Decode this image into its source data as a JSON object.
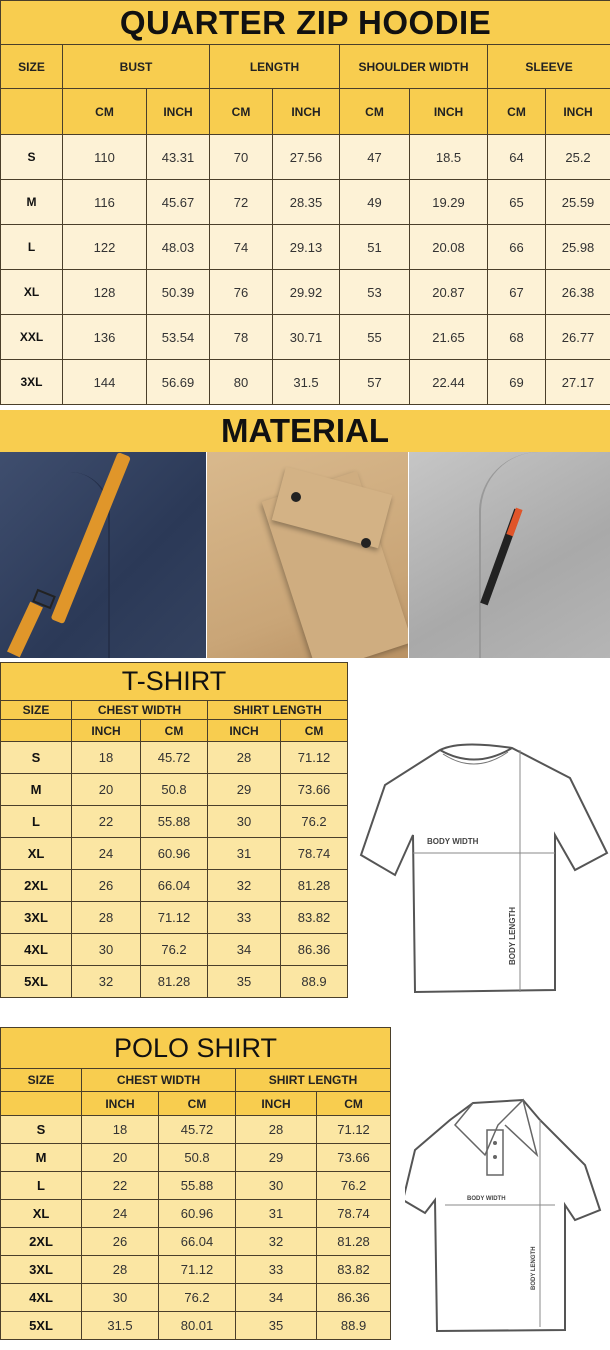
{
  "hoodie": {
    "title": "QUARTER ZIP HOODIE",
    "headers": [
      "SIZE",
      "BUST",
      "LENGTH",
      "SHOULDER WIDTH",
      "SLEEVE"
    ],
    "units": [
      "CM",
      "INCH",
      "CM",
      "INCH",
      "CM",
      "INCH",
      "CM",
      "INCH"
    ],
    "rows": [
      [
        "S",
        "110",
        "43.31",
        "70",
        "27.56",
        "47",
        "18.5",
        "64",
        "25.2"
      ],
      [
        "M",
        "116",
        "45.67",
        "72",
        "28.35",
        "49",
        "19.29",
        "65",
        "25.59"
      ],
      [
        "L",
        "122",
        "48.03",
        "74",
        "29.13",
        "51",
        "20.08",
        "66",
        "25.98"
      ],
      [
        "XL",
        "128",
        "50.39",
        "76",
        "29.92",
        "53",
        "20.87",
        "67",
        "26.38"
      ],
      [
        "XXL",
        "136",
        "53.54",
        "78",
        "30.71",
        "55",
        "21.65",
        "68",
        "26.77"
      ],
      [
        "3XL",
        "144",
        "56.69",
        "80",
        "31.5",
        "57",
        "22.44",
        "69",
        "27.17"
      ]
    ]
  },
  "material": {
    "title": "MATERIAL",
    "photos": [
      "navy-fabric-with-orange-strap",
      "tan-fabric-with-flap-pocket",
      "grey-fabric-with-zipper"
    ]
  },
  "tshirt": {
    "title": "T-SHIRT",
    "headers": [
      "SIZE",
      "CHEST WIDTH",
      "SHIRT LENGTH"
    ],
    "units": [
      "INCH",
      "CM",
      "INCH",
      "CM"
    ],
    "rows": [
      [
        "S",
        "18",
        "45.72",
        "28",
        "71.12"
      ],
      [
        "M",
        "20",
        "50.8",
        "29",
        "73.66"
      ],
      [
        "L",
        "22",
        "55.88",
        "30",
        "76.2"
      ],
      [
        "XL",
        "24",
        "60.96",
        "31",
        "78.74"
      ],
      [
        "2XL",
        "26",
        "66.04",
        "32",
        "81.28"
      ],
      [
        "3XL",
        "28",
        "71.12",
        "33",
        "83.82"
      ],
      [
        "4XL",
        "30",
        "76.2",
        "34",
        "86.36"
      ],
      [
        "5XL",
        "32",
        "81.28",
        "35",
        "88.9"
      ]
    ],
    "diagram": {
      "width_label": "BODY WIDTH",
      "length_label": "BODY LENGTH"
    }
  },
  "polo": {
    "title": "POLO SHIRT",
    "headers": [
      "SIZE",
      "CHEST WIDTH",
      "SHIRT LENGTH"
    ],
    "units": [
      "INCH",
      "CM",
      "INCH",
      "CM"
    ],
    "rows": [
      [
        "S",
        "18",
        "45.72",
        "28",
        "71.12"
      ],
      [
        "M",
        "20",
        "50.8",
        "29",
        "73.66"
      ],
      [
        "L",
        "22",
        "55.88",
        "30",
        "76.2"
      ],
      [
        "XL",
        "24",
        "60.96",
        "31",
        "78.74"
      ],
      [
        "2XL",
        "26",
        "66.04",
        "32",
        "81.28"
      ],
      [
        "3XL",
        "28",
        "71.12",
        "33",
        "83.82"
      ],
      [
        "4XL",
        "30",
        "76.2",
        "34",
        "86.36"
      ],
      [
        "5XL",
        "31.5",
        "80.01",
        "35",
        "88.9"
      ]
    ],
    "diagram": {
      "width_label": "BODY WIDTH",
      "length_label": "BODY LENGTH"
    }
  },
  "colors": {
    "header": "#f8cd4f",
    "hoodie_row": "#fdf2d6",
    "shirt_row": "#fbe6a3"
  }
}
